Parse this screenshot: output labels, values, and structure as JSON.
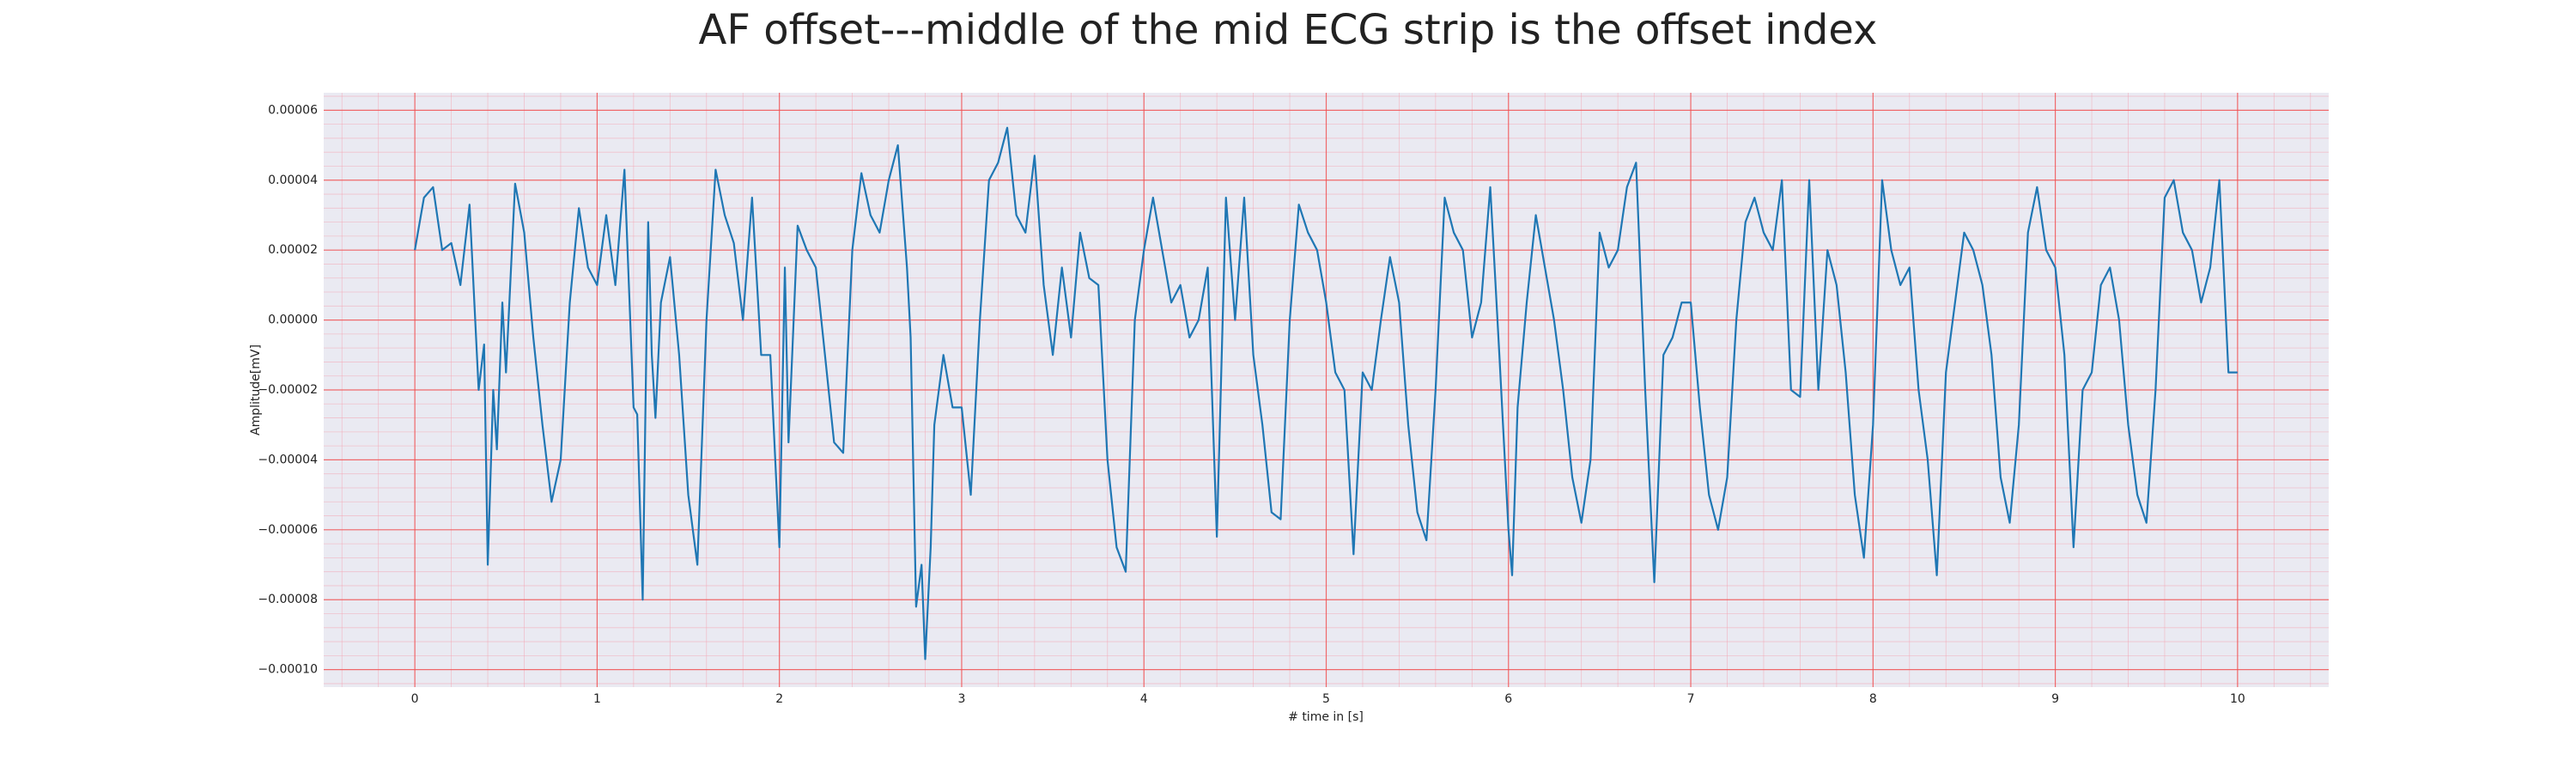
{
  "chart_data": {
    "type": "line",
    "title": "AF offset---middle of the mid ECG strip is the offset index",
    "xlabel": "# time in [s]",
    "ylabel": "Amplitude[mV]",
    "x": [
      0,
      0.05,
      0.1,
      0.15,
      0.2,
      0.25,
      0.3,
      0.35,
      0.38,
      0.4,
      0.43,
      0.45,
      0.48,
      0.5,
      0.55,
      0.6,
      0.65,
      0.7,
      0.75,
      0.8,
      0.85,
      0.9,
      0.95,
      1.0,
      1.05,
      1.1,
      1.15,
      1.2,
      1.22,
      1.25,
      1.28,
      1.3,
      1.32,
      1.35,
      1.4,
      1.45,
      1.5,
      1.55,
      1.6,
      1.65,
      1.7,
      1.75,
      1.8,
      1.85,
      1.9,
      1.95,
      2.0,
      2.03,
      2.05,
      2.1,
      2.15,
      2.2,
      2.25,
      2.3,
      2.35,
      2.4,
      2.45,
      2.5,
      2.55,
      2.6,
      2.65,
      2.7,
      2.72,
      2.75,
      2.78,
      2.8,
      2.83,
      2.85,
      2.9,
      2.95,
      3.0,
      3.05,
      3.1,
      3.15,
      3.2,
      3.25,
      3.3,
      3.35,
      3.4,
      3.45,
      3.5,
      3.55,
      3.6,
      3.65,
      3.7,
      3.75,
      3.8,
      3.85,
      3.9,
      3.95,
      4.0,
      4.05,
      4.1,
      4.15,
      4.2,
      4.25,
      4.3,
      4.35,
      4.4,
      4.45,
      4.5,
      4.55,
      4.6,
      4.65,
      4.7,
      4.75,
      4.8,
      4.85,
      4.9,
      4.95,
      5.0,
      5.05,
      5.1,
      5.15,
      5.2,
      5.25,
      5.3,
      5.35,
      5.4,
      5.45,
      5.5,
      5.55,
      5.6,
      5.65,
      5.7,
      5.75,
      5.8,
      5.85,
      5.9,
      5.95,
      6.0,
      6.02,
      6.05,
      6.1,
      6.15,
      6.2,
      6.25,
      6.3,
      6.35,
      6.4,
      6.45,
      6.5,
      6.55,
      6.6,
      6.65,
      6.7,
      6.75,
      6.8,
      6.85,
      6.9,
      6.95,
      7.0,
      7.05,
      7.1,
      7.15,
      7.2,
      7.25,
      7.3,
      7.35,
      7.4,
      7.45,
      7.5,
      7.55,
      7.6,
      7.65,
      7.7,
      7.75,
      7.8,
      7.85,
      7.9,
      7.95,
      8.0,
      8.05,
      8.1,
      8.15,
      8.2,
      8.25,
      8.3,
      8.35,
      8.4,
      8.45,
      8.5,
      8.55,
      8.6,
      8.65,
      8.7,
      8.75,
      8.8,
      8.85,
      8.9,
      8.95,
      9.0,
      9.05,
      9.1,
      9.15,
      9.2,
      9.25,
      9.3,
      9.35,
      9.4,
      9.45,
      9.5,
      9.55,
      9.6,
      9.65,
      9.7,
      9.75,
      9.8,
      9.85,
      9.9,
      9.95,
      10.0
    ],
    "series": [
      {
        "color": "#1f77b4",
        "values": [
          2e-05,
          3.5e-05,
          3.8e-05,
          2e-05,
          2.2e-05,
          1e-05,
          3.3e-05,
          -2e-05,
          -7e-06,
          -7e-05,
          -2e-05,
          -3.7e-05,
          5e-06,
          -1.5e-05,
          3.9e-05,
          2.5e-05,
          -5e-06,
          -3e-05,
          -5.2e-05,
          -4e-05,
          5e-06,
          3.2e-05,
          1.5e-05,
          1e-05,
          3e-05,
          1e-05,
          4.3e-05,
          -2.5e-05,
          -2.7e-05,
          -8e-05,
          2.8e-05,
          -1e-05,
          -2.8e-05,
          5e-06,
          1.8e-05,
          -1e-05,
          -5e-05,
          -7e-05,
          0,
          4.3e-05,
          3e-05,
          2.2e-05,
          0,
          3.5e-05,
          -1e-05,
          -1e-05,
          -6.5e-05,
          1.5e-05,
          -3.5e-05,
          2.7e-05,
          2e-05,
          1.5e-05,
          -1e-05,
          -3.5e-05,
          -3.8e-05,
          2e-05,
          4.2e-05,
          3e-05,
          2.5e-05,
          4e-05,
          5e-05,
          1.5e-05,
          -5e-06,
          -8.2e-05,
          -7e-05,
          -9.7e-05,
          -6.5e-05,
          -3e-05,
          -1e-05,
          -2.5e-05,
          -2.5e-05,
          -5e-05,
          0,
          4e-05,
          4.5e-05,
          5.5e-05,
          3e-05,
          2.5e-05,
          4.7e-05,
          1e-05,
          -1e-05,
          1.5e-05,
          -5e-06,
          2.5e-05,
          1.2e-05,
          1e-05,
          -4e-05,
          -6.5e-05,
          -7.2e-05,
          0,
          2e-05,
          3.5e-05,
          2e-05,
          5e-06,
          1e-05,
          -5e-06,
          0,
          1.5e-05,
          -6.2e-05,
          3.5e-05,
          0,
          3.5e-05,
          -1e-05,
          -3e-05,
          -5.5e-05,
          -5.7e-05,
          0,
          3.3e-05,
          2.5e-05,
          2e-05,
          5e-06,
          -1.5e-05,
          -2e-05,
          -6.7e-05,
          -1.5e-05,
          -2e-05,
          0,
          1.8e-05,
          5e-06,
          -3e-05,
          -5.5e-05,
          -6.3e-05,
          -2e-05,
          3.5e-05,
          2.5e-05,
          2e-05,
          -5e-06,
          5e-06,
          3.8e-05,
          -1e-05,
          -6e-05,
          -7.3e-05,
          -2.5e-05,
          5e-06,
          3e-05,
          1.5e-05,
          0,
          -2e-05,
          -4.5e-05,
          -5.8e-05,
          -4e-05,
          2.5e-05,
          1.5e-05,
          2e-05,
          3.8e-05,
          4.5e-05,
          -2e-05,
          -7.5e-05,
          -1e-05,
          -5e-06,
          5e-06,
          5e-06,
          -2.5e-05,
          -5e-05,
          -6e-05,
          -4.5e-05,
          0,
          2.8e-05,
          3.5e-05,
          2.5e-05,
          2e-05,
          4e-05,
          -2e-05,
          -2.2e-05,
          4e-05,
          -2e-05,
          2e-05,
          1e-05,
          -1.5e-05,
          -5e-05,
          -6.8e-05,
          -3e-05,
          4e-05,
          2e-05,
          1e-05,
          1.5e-05,
          -2e-05,
          -4e-05,
          -7.3e-05,
          -1.5e-05,
          5e-06,
          2.5e-05,
          2e-05,
          1e-05,
          -1e-05,
          -4.5e-05,
          -5.8e-05,
          -3e-05,
          2.5e-05,
          3.8e-05,
          2e-05,
          1.5e-05,
          -1e-05,
          -6.5e-05,
          -2e-05,
          -1.5e-05,
          1e-05,
          1.5e-05,
          0,
          -3e-05,
          -5e-05,
          -5.8e-05,
          -2e-05,
          3.5e-05,
          4e-05,
          2.5e-05,
          2e-05,
          5e-06,
          1.5e-05,
          4e-05,
          -1.5e-05,
          -1.5e-05
        ]
      }
    ],
    "xlim": [
      -0.5,
      10.5
    ],
    "xticks": [
      0,
      1,
      2,
      3,
      4,
      5,
      6,
      7,
      8,
      9,
      10
    ],
    "ylim": [
      -0.000105,
      6.5e-05
    ],
    "yticks": [
      {
        "value": 6e-05,
        "label": "0.00006"
      },
      {
        "value": 4e-05,
        "label": "0.00004"
      },
      {
        "value": 2e-05,
        "label": "0.00002"
      },
      {
        "value": 0,
        "label": "0.00000"
      },
      {
        "value": -2e-05,
        "label": "−0.00002"
      },
      {
        "value": -4e-05,
        "label": "−0.00004"
      },
      {
        "value": -6e-05,
        "label": "−0.00006"
      },
      {
        "value": -8e-05,
        "label": "−0.00008"
      },
      {
        "value": -0.0001,
        "label": "−0.00010"
      }
    ],
    "grid": true,
    "minor_grid": true
  }
}
